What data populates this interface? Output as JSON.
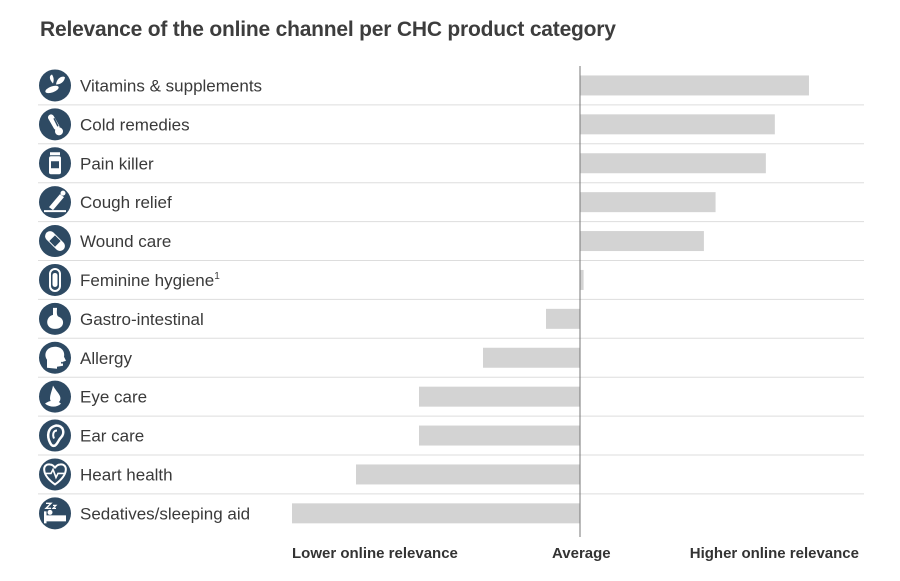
{
  "chart_data": {
    "type": "bar",
    "orientation": "horizontal",
    "title": "Relevance of the online channel per CHC product category",
    "categories": [
      {
        "label": "Vitamins & supplements",
        "sup": "",
        "icon": "vitamins-icon"
      },
      {
        "label": "Cold remedies",
        "sup": "",
        "icon": "thermometer-icon"
      },
      {
        "label": "Pain killer",
        "sup": "",
        "icon": "pill-bottle-icon"
      },
      {
        "label": "Cough relief",
        "sup": "",
        "icon": "cough-syrup-icon"
      },
      {
        "label": "Wound care",
        "sup": "",
        "icon": "bandage-icon"
      },
      {
        "label": "Feminine hygiene",
        "sup": "1",
        "icon": "pad-icon"
      },
      {
        "label": "Gastro-intestinal",
        "sup": "",
        "icon": "stomach-icon"
      },
      {
        "label": "Allergy",
        "sup": "",
        "icon": "allergy-head-icon"
      },
      {
        "label": "Eye care",
        "sup": "",
        "icon": "eye-drops-icon"
      },
      {
        "label": "Ear care",
        "sup": "",
        "icon": "ear-icon"
      },
      {
        "label": "Heart health",
        "sup": "",
        "icon": "heart-pulse-icon"
      },
      {
        "label": "Sedatives/sleeping aid",
        "sup": "",
        "icon": "sleeping-icon"
      }
    ],
    "values": [
      2.55,
      2.17,
      2.07,
      1.51,
      1.38,
      0.04,
      -0.34,
      -0.97,
      -1.61,
      -1.61,
      -2.24,
      -2.88
    ],
    "xlim": [
      -2.88,
      2.84
    ],
    "axis_labels": {
      "lower": "Lower online relevance",
      "average": "Average",
      "higher": "Higher online relevance"
    },
    "grid": true,
    "colors": {
      "bar": "#d3d3d3",
      "icon": "#2e4a63",
      "axis": "#777777",
      "grid": "#dddddd"
    }
  }
}
